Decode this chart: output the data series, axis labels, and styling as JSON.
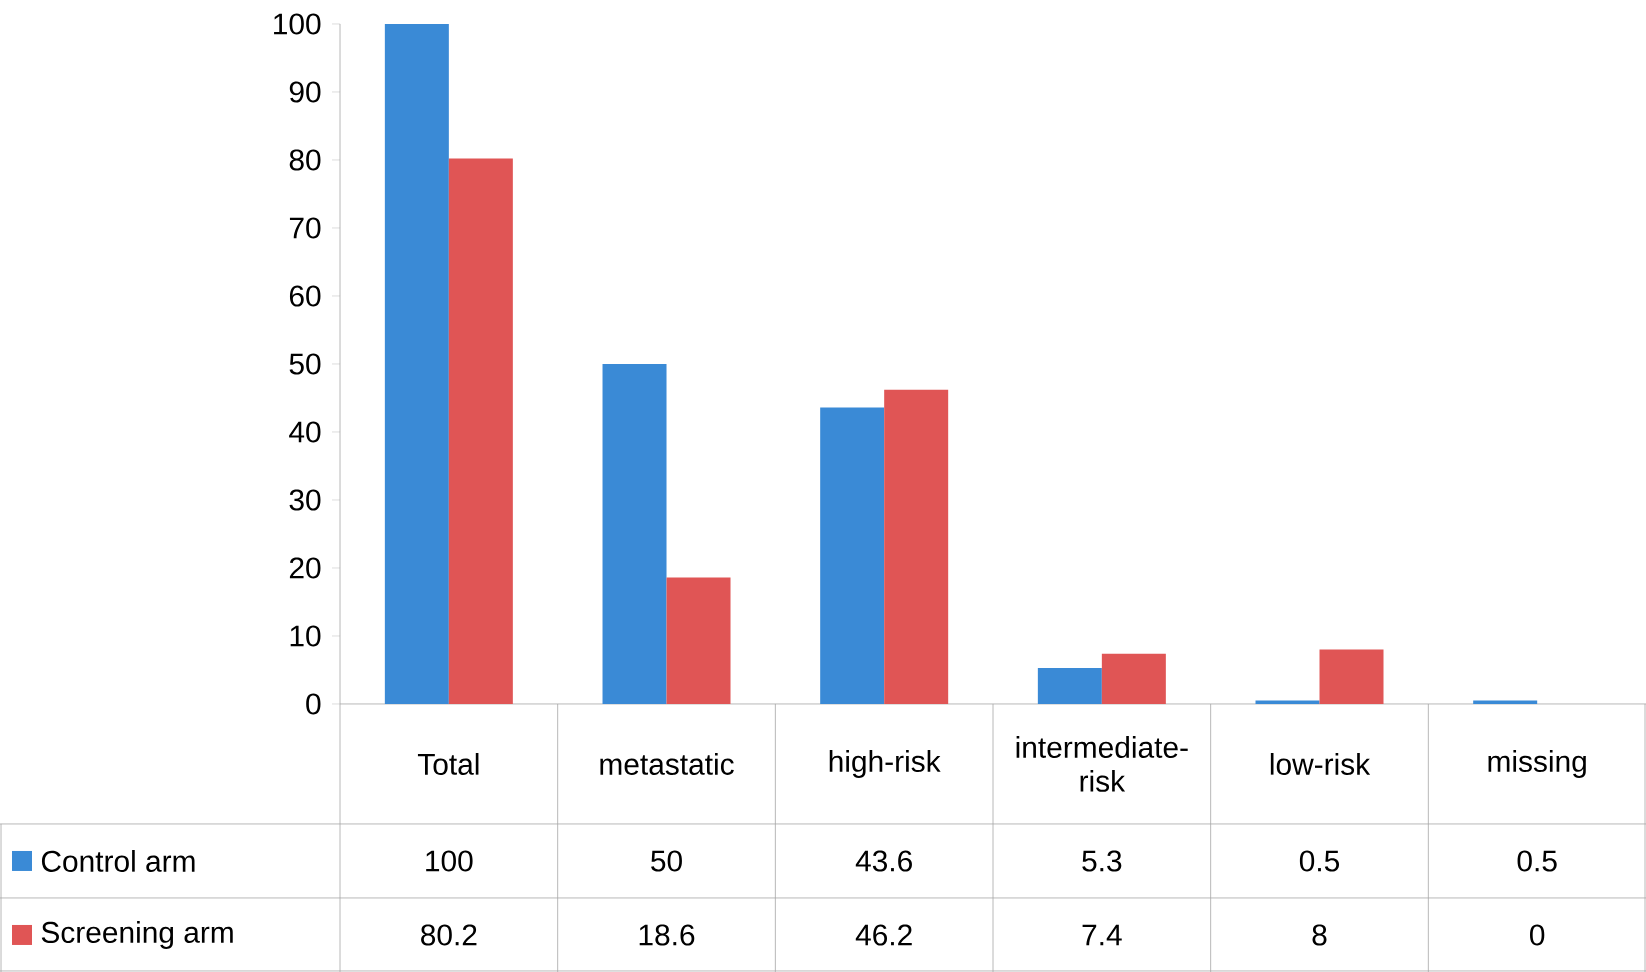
{
  "chart_data": {
    "type": "bar",
    "categories": [
      "Total",
      "metastatic",
      "high-risk",
      "intermediate-risk",
      "low-risk",
      "missing"
    ],
    "series": [
      {
        "name": "Control arm",
        "color": "#3a8ad6",
        "values": [
          100,
          50,
          43.6,
          5.3,
          0.5,
          0.5
        ]
      },
      {
        "name": "Screening arm",
        "color": "#e05555",
        "values": [
          80.2,
          18.6,
          46.2,
          7.4,
          8,
          0
        ]
      }
    ],
    "ylim": [
      0,
      100
    ],
    "yticks": [
      0,
      10,
      20,
      30,
      40,
      50,
      60,
      70,
      80,
      90,
      100
    ],
    "data_labels": true,
    "legend": "bottom left"
  }
}
